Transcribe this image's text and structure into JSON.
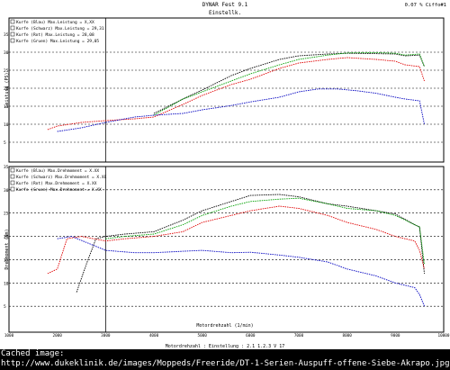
{
  "header": {
    "title": "DYNAR Fest 9.1",
    "subtitle": "Einstellk.",
    "right": "0.07 % Ciffo#1"
  },
  "footer": {
    "tick_label_note": "Motordrehzahl (1/min)",
    "bottom_text": "Motordrehzahl : Einstellung : 2.1 1.2.3 V 17"
  },
  "caption": {
    "line1": "Cached image:",
    "line2": "http://www.dukeklinik.de/images/Moppeds/Freeride/DT-1-Serien-Auspuff-offene-Siebe-Akrapo.jpg"
  },
  "chart_data": [
    {
      "type": "line",
      "ylabel": "Leistung (PS)",
      "ylim": [
        0,
        35
      ],
      "xlim": [
        1000,
        10000
      ],
      "grid": true,
      "y_ticks": [
        {
          "label": "35",
          "value": 35
        },
        {
          "label": "30",
          "value": 30
        },
        {
          "label": "25",
          "value": 25
        },
        {
          "label": "20",
          "value": 20
        },
        {
          "label": "15",
          "value": 15
        },
        {
          "label": "10",
          "value": 10
        },
        {
          "label": "5",
          "value": 5
        }
      ],
      "legend": [
        "Kurfe (Blau) Max.Leistung = X,XX",
        "Kurfe (Schwarz) Max.Leistung = 29,31",
        "Kurfe (Rot) Max.Leistung = 28,08",
        "Kurfe (Gruen) Max.Leistung = 29,05"
      ],
      "series": [
        {
          "color": "#000000",
          "x": [
            4000,
            4600,
            5000,
            5600,
            6000,
            6600,
            7000,
            7600,
            8000,
            8600,
            9000,
            9200,
            9500,
            9600
          ],
          "y": [
            13,
            17,
            19.5,
            23.5,
            25.5,
            28,
            29,
            29.5,
            29.7,
            29.6,
            29.5,
            29,
            29.2,
            26
          ]
        },
        {
          "color": "#00a000",
          "x": [
            4000,
            4600,
            5000,
            5600,
            6000,
            6600,
            7000,
            7600,
            8000,
            8600,
            9000,
            9200,
            9500,
            9600
          ],
          "y": [
            12.5,
            17,
            19,
            22,
            24,
            26.5,
            28,
            29.2,
            29.8,
            29.9,
            29.7,
            29.2,
            29.5,
            26
          ]
        },
        {
          "color": "#e00000",
          "x": [
            1800,
            2000,
            2500,
            3000,
            3600,
            4000,
            4600,
            5000,
            5600,
            6000,
            6600,
            7000,
            7600,
            8000,
            8600,
            9000,
            9200,
            9500,
            9600
          ],
          "y": [
            8.5,
            9.5,
            10.5,
            11,
            11.5,
            12,
            15.5,
            18,
            21,
            22.5,
            25.5,
            27,
            28,
            28.5,
            28,
            27.5,
            26.5,
            26,
            22
          ]
        },
        {
          "color": "#0000c0",
          "x": [
            2000,
            2500,
            3000,
            3600,
            4000,
            4600,
            5000,
            5600,
            6000,
            6600,
            7000,
            7400,
            7800,
            8200,
            8600,
            9000,
            9200,
            9500,
            9600
          ],
          "y": [
            8,
            9,
            10.5,
            12,
            12.5,
            13,
            14,
            15.2,
            16.2,
            17.5,
            19,
            19.8,
            19.8,
            19.3,
            18.6,
            17.5,
            17,
            16.5,
            10
          ]
        }
      ]
    },
    {
      "type": "line",
      "ylabel": "Drehmoment (Nm)",
      "xlabel": "Motordrehzahl (1/min)",
      "ylim": [
        0,
        35
      ],
      "xlim": [
        1000,
        10000
      ],
      "grid": true,
      "x_ticks": [
        {
          "label": "1000",
          "value": 1000
        },
        {
          "label": "2000",
          "value": 2000
        },
        {
          "label": "3000",
          "value": 3000
        },
        {
          "label": "4000",
          "value": 4000
        },
        {
          "label": "5000",
          "value": 5000
        },
        {
          "label": "6000",
          "value": 6000
        },
        {
          "label": "7000",
          "value": 7000
        },
        {
          "label": "8000",
          "value": 8000
        },
        {
          "label": "9000",
          "value": 9000
        },
        {
          "label": "10000",
          "value": 10000
        }
      ],
      "y_ticks": [
        {
          "label": "35",
          "value": 35
        },
        {
          "label": "30",
          "value": 30
        },
        {
          "label": "25",
          "value": 25
        },
        {
          "label": "20",
          "value": 20
        },
        {
          "label": "15",
          "value": 15
        },
        {
          "label": "10",
          "value": 10
        },
        {
          "label": "5",
          "value": 5
        }
      ],
      "legend": [
        "Kurfe (Blau) Max.Drehmoment = X.XX",
        "Kurfe (Schwarz) Max.Drehmoment = X.XX",
        "Kurfe (Rot) Max.Drehmoment = X.XX",
        "Kurfe (Gruen) Max.Drehmoment = X.XX"
      ],
      "series": [
        {
          "color": "#000000",
          "x": [
            2400,
            2600,
            2800,
            3000,
            3400,
            4000,
            4600,
            5000,
            5600,
            6000,
            6600,
            7000,
            7600,
            8000,
            8600,
            9000,
            9400,
            9500,
            9600
          ],
          "y": [
            8,
            14,
            19.5,
            20,
            20.5,
            21,
            23.5,
            25.5,
            27.5,
            28.8,
            29,
            28.5,
            27,
            26.5,
            25.5,
            24.8,
            22.5,
            22,
            12
          ]
        },
        {
          "color": "#00a000",
          "x": [
            3000,
            3400,
            4000,
            4600,
            5000,
            5600,
            6000,
            6600,
            7000,
            7600,
            8000,
            8600,
            9000,
            9400,
            9500,
            9600
          ],
          "y": [
            19.5,
            20,
            20.5,
            22.5,
            24.5,
            26.5,
            27.5,
            28,
            28.2,
            27,
            26,
            25.5,
            24.5,
            22.5,
            22,
            14
          ]
        },
        {
          "color": "#e00000",
          "x": [
            1800,
            2000,
            2200,
            2500,
            3000,
            3400,
            4000,
            4600,
            5000,
            5600,
            6000,
            6600,
            7000,
            7600,
            8000,
            8600,
            9000,
            9400,
            9500,
            9600
          ],
          "y": [
            12,
            13,
            19.5,
            20,
            19,
            19.5,
            20,
            21,
            23,
            24.5,
            25.5,
            26.5,
            26,
            24.5,
            23,
            21.5,
            20,
            19,
            17,
            13
          ]
        },
        {
          "color": "#0000c0",
          "x": [
            2000,
            2300,
            3000,
            3600,
            4000,
            4600,
            5000,
            5600,
            6000,
            6600,
            7000,
            7600,
            8000,
            8600,
            9000,
            9400,
            9500,
            9600
          ],
          "y": [
            19.5,
            20,
            17,
            16.5,
            16.5,
            16.8,
            17,
            16.5,
            16.6,
            16,
            15.5,
            14.5,
            13,
            11.5,
            10,
            9,
            7.5,
            5
          ]
        }
      ]
    }
  ]
}
